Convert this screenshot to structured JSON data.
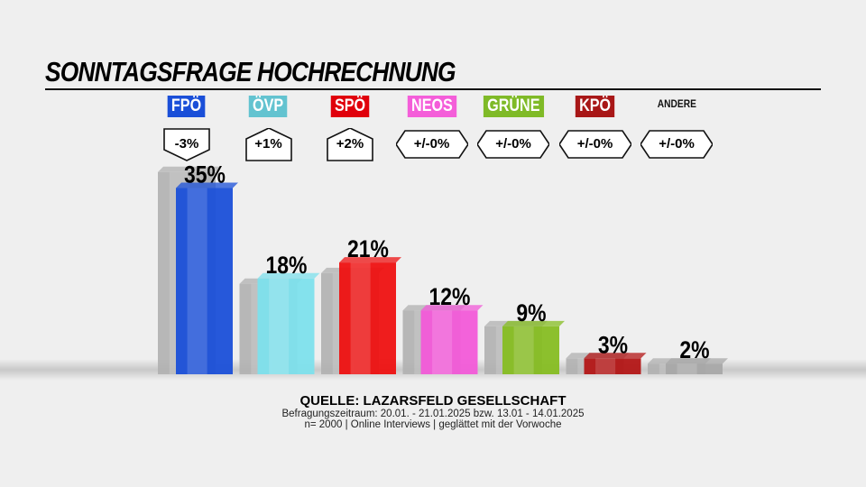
{
  "title": "SONNTAGSFRAGE HOCHRECHNUNG",
  "chart_data": {
    "type": "bar",
    "categories": [
      "FPÖ",
      "ÖVP",
      "SPÖ",
      "NEOS",
      "GRÜNE",
      "KPÖ",
      "ANDERE"
    ],
    "series": [
      {
        "values": [
          38,
          17,
          19,
          12,
          9,
          3,
          2
        ],
        "color": "#b0b0b0"
      },
      {
        "values": [
          35,
          18,
          21,
          12,
          9,
          3,
          2
        ]
      }
    ],
    "value_labels": [
      "35%",
      "18%",
      "21%",
      "12%",
      "9%",
      "3%",
      "2%"
    ],
    "changes": [
      "-3%",
      "+1%",
      "+2%",
      "+/-0%",
      "+/-0%",
      "+/-0%",
      "+/-0%"
    ],
    "change_direction": [
      "down",
      "up",
      "up",
      "none",
      "none",
      "none",
      "none"
    ],
    "colors": [
      "#1a4fd8",
      "#7de0ec",
      "#ee1111",
      "#f25ad8",
      "#86bd22",
      "#b31616",
      "#a8a8a8"
    ],
    "label_colors": [
      "#1a4fd8",
      "#63c3d0",
      "#e0000b",
      "#f45ed9",
      "#7fba27",
      "#a81717",
      ""
    ],
    "ylim": [
      0,
      40
    ]
  },
  "source": {
    "line1": "QUELLE: LAZARSFELD GESELLSCHAFT",
    "line2": "Befragungszeitraum: 20.01. - 21.01.2025 bzw. 13.01 - 14.01.2025",
    "line3": "n= 2000 | Online Interviews | geglättet mit der Vorwoche"
  }
}
